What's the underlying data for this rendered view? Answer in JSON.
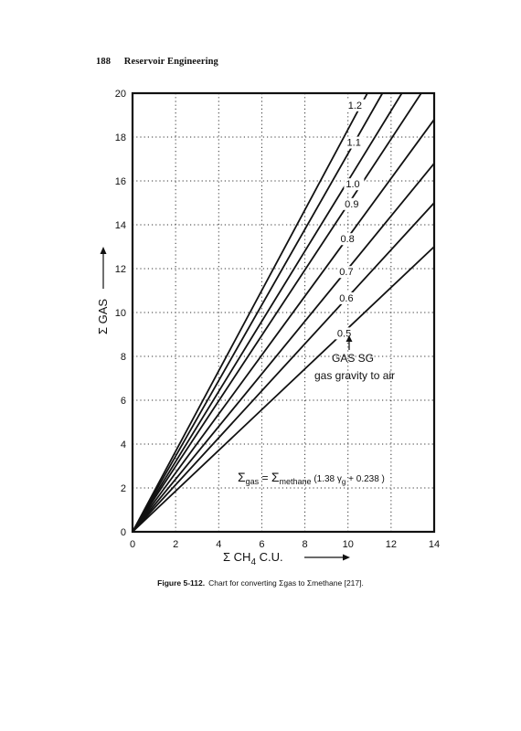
{
  "page": {
    "number": "188",
    "running_title": "Reservoir Engineering"
  },
  "caption": {
    "label": "Figure 5-112.",
    "text": "Chart for converting Σgas to Σmethane [217]."
  },
  "chart_data": {
    "type": "line",
    "xlabel": "Σ CH₄ C.U. →",
    "ylabel": "Σ GAS →",
    "xlim": [
      0,
      14
    ],
    "ylim": [
      0,
      20
    ],
    "xticks": [
      0,
      2,
      4,
      6,
      8,
      10,
      12,
      14
    ],
    "yticks": [
      0,
      2,
      4,
      6,
      8,
      10,
      12,
      14,
      16,
      18,
      20
    ],
    "grid": true,
    "formula": "Σgas = Σmethane (1.38 γg + 0.238)",
    "annotation": {
      "title": "GAS SG",
      "subtitle": "gas gravity to air"
    },
    "series": [
      {
        "name": "0.5",
        "gravity": 0.5,
        "x": [
          0,
          14
        ],
        "y": [
          0,
          13.0
        ]
      },
      {
        "name": "0.6",
        "gravity": 0.6,
        "x": [
          0,
          14
        ],
        "y": [
          0,
          15.0
        ]
      },
      {
        "name": "0.7",
        "gravity": 0.7,
        "x": [
          0,
          14
        ],
        "y": [
          0,
          16.8
        ]
      },
      {
        "name": "0.8",
        "gravity": 0.8,
        "x": [
          0,
          14
        ],
        "y": [
          0,
          18.8
        ]
      },
      {
        "name": "0.9",
        "gravity": 0.9,
        "x": [
          0,
          13.4
        ],
        "y": [
          0,
          20
        ]
      },
      {
        "name": "1.0",
        "gravity": 1.0,
        "x": [
          0,
          12.5
        ],
        "y": [
          0,
          20
        ]
      },
      {
        "name": "1.1",
        "gravity": 1.1,
        "x": [
          0,
          11.6
        ],
        "y": [
          0,
          20
        ]
      },
      {
        "name": "1.2",
        "gravity": 1.2,
        "x": [
          0,
          10.9
        ],
        "y": [
          0,
          20
        ]
      }
    ]
  }
}
